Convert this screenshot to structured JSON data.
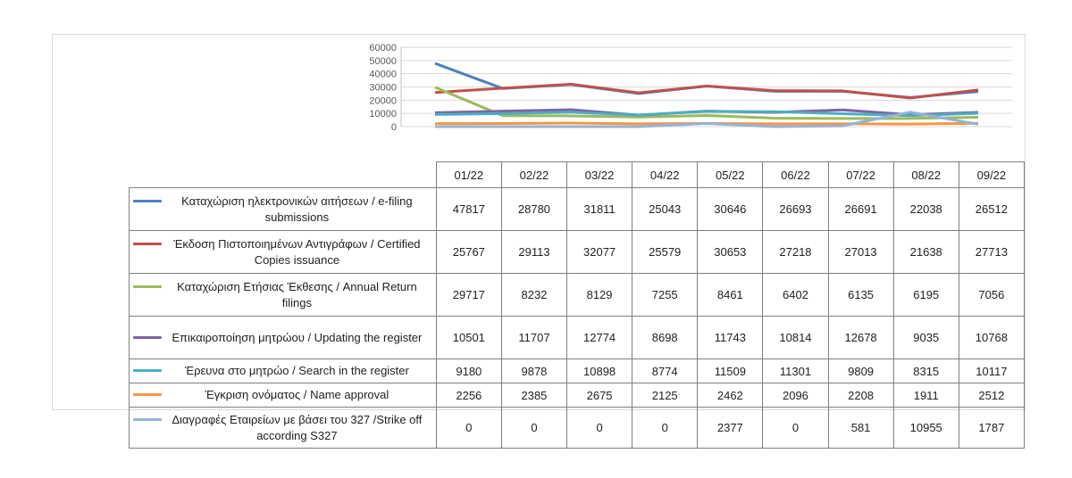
{
  "chart_data": {
    "type": "line",
    "categories": [
      "01/22",
      "02/22",
      "03/22",
      "04/22",
      "05/22",
      "06/22",
      "07/22",
      "08/22",
      "09/22"
    ],
    "ylim": [
      0,
      60000
    ],
    "yticks": [
      "60000",
      "50000",
      "40000",
      "30000",
      "20000",
      "10000",
      "0"
    ],
    "ytick_values": [
      60000,
      50000,
      40000,
      30000,
      20000,
      10000,
      0
    ],
    "grid": true,
    "legend": "data-table",
    "series": [
      {
        "name": "Καταχώριση ηλεκτρονικών αιτήσεων / e-filing submissions",
        "color": "#4f81bd",
        "values": [
          47817,
          28780,
          31811,
          25043,
          30646,
          26693,
          26691,
          22038,
          26512
        ]
      },
      {
        "name": "Έκδοση Πιστοποιημένων Αντιγράφων / Certified Copies issuance",
        "color": "#c0504d",
        "values": [
          25767,
          29113,
          32077,
          25579,
          30653,
          27218,
          27013,
          21638,
          27713
        ]
      },
      {
        "name": "Καταχώριση Ετήσιας Έκθεσης / Annual Return filings",
        "color": "#9bbb59",
        "values": [
          29717,
          8232,
          8129,
          7255,
          8461,
          6402,
          6135,
          6195,
          7056
        ]
      },
      {
        "name": "Επικαιροποίηση μητρώου / Updating the register",
        "color": "#8064a2",
        "values": [
          10501,
          11707,
          12774,
          8698,
          11743,
          10814,
          12678,
          9035,
          10768
        ]
      },
      {
        "name": "Έρευνα στο μητρώο / Search in the register",
        "color": "#4bacc6",
        "values": [
          9180,
          9878,
          10898,
          8774,
          11509,
          11301,
          9809,
          8315,
          10117
        ]
      },
      {
        "name": "Έγκριση ονόματος / Name approval",
        "color": "#f79646",
        "values": [
          2256,
          2385,
          2675,
          2125,
          2462,
          2096,
          2208,
          1911,
          2512
        ]
      },
      {
        "name": "Διαγραφές Εταιρείων με βάσει του 327 /Strike off according S327",
        "color": "#95b3d7",
        "values": [
          0,
          0,
          0,
          0,
          2377,
          0,
          581,
          10955,
          1787
        ]
      }
    ]
  }
}
